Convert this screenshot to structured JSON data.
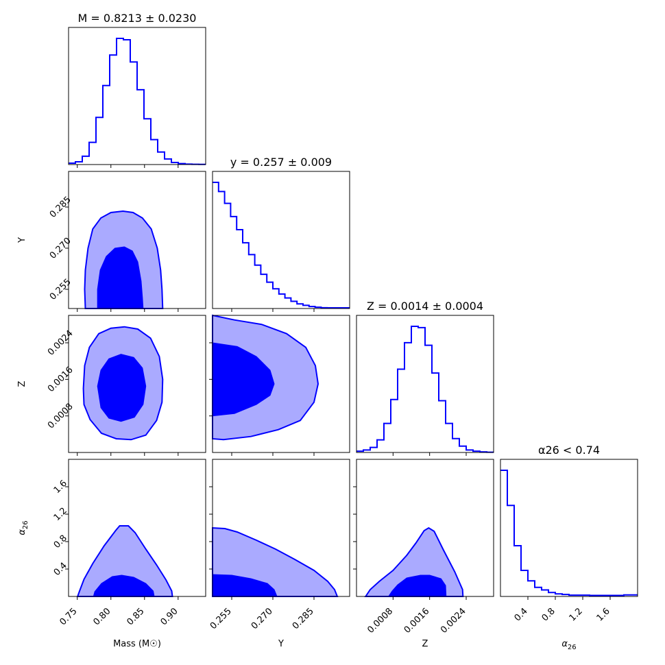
{
  "chart_data": {
    "type": "corner",
    "params": [
      {
        "key": "M",
        "axis_label": "Mass (M☉)",
        "title": "M = 0.8213 ± 0.0230",
        "range": [
          0.737,
          0.941
        ],
        "ticks": [
          0.75,
          0.8,
          0.85,
          0.9
        ],
        "tick_labels": [
          "0.75",
          "0.80",
          "0.85",
          "0.90"
        ]
      },
      {
        "key": "Y",
        "axis_label": "Y",
        "title": "y = 0.257 ± 0.009",
        "range": [
          0.248,
          0.298
        ],
        "ticks": [
          0.255,
          0.27,
          0.285
        ],
        "tick_labels": [
          "0.255",
          "0.270",
          "0.285"
        ]
      },
      {
        "key": "Z",
        "axis_label": "Z",
        "title": "Z = 0.0014 ± 0.0004",
        "range": [
          0.0,
          0.003
        ],
        "ticks": [
          0.0008,
          0.0016,
          0.0024
        ],
        "tick_labels": [
          "0.0008",
          "0.0016",
          "0.0024"
        ]
      },
      {
        "key": "alpha26",
        "axis_label": "α26",
        "title": "α26 < 0.74",
        "range": [
          0.0,
          2.0
        ],
        "ticks": [
          0.4,
          0.8,
          1.2,
          1.6
        ],
        "tick_labels": [
          "0.4",
          "0.8",
          "1.2",
          "1.6"
        ]
      }
    ],
    "histograms": [
      {
        "param": "M",
        "bins": [
          0.737,
          0.7472,
          0.7574,
          0.7676,
          0.7778,
          0.788,
          0.7982,
          0.8084,
          0.8186,
          0.8288,
          0.839,
          0.8492,
          0.8594,
          0.8696,
          0.8798,
          0.89,
          0.9002,
          0.9104,
          0.9206,
          0.9308,
          0.941
        ],
        "counts": [
          0.01,
          0.02,
          0.06,
          0.16,
          0.34,
          0.57,
          0.79,
          0.91,
          0.9,
          0.74,
          0.54,
          0.33,
          0.18,
          0.09,
          0.04,
          0.015,
          0.007,
          0.003,
          0.002,
          0.001
        ]
      },
      {
        "param": "Y",
        "bins": [
          0.248,
          0.2502,
          0.2524,
          0.2546,
          0.2568,
          0.259,
          0.2612,
          0.2634,
          0.2656,
          0.2678,
          0.27,
          0.2722,
          0.2744,
          0.2766,
          0.2788,
          0.281,
          0.2832,
          0.2854,
          0.2876,
          0.2898,
          0.298
        ],
        "counts": [
          0.96,
          0.89,
          0.8,
          0.7,
          0.6,
          0.5,
          0.41,
          0.33,
          0.26,
          0.2,
          0.15,
          0.11,
          0.08,
          0.055,
          0.035,
          0.024,
          0.015,
          0.01,
          0.006,
          0.005
        ]
      },
      {
        "param": "Z",
        "bins": [
          0.0,
          0.00015,
          0.0003,
          0.00045,
          0.0006,
          0.00075,
          0.0009,
          0.00105,
          0.0012,
          0.00135,
          0.0015,
          0.00165,
          0.0018,
          0.00195,
          0.0021,
          0.00225,
          0.0024,
          0.00255,
          0.0027,
          0.00285,
          0.003
        ],
        "counts": [
          0.01,
          0.02,
          0.04,
          0.1,
          0.23,
          0.42,
          0.66,
          0.87,
          1.0,
          0.99,
          0.85,
          0.63,
          0.41,
          0.23,
          0.11,
          0.05,
          0.02,
          0.01,
          0.005,
          0.002
        ]
      },
      {
        "param": "alpha26",
        "bins": [
          0.0,
          0.1,
          0.2,
          0.3,
          0.4,
          0.5,
          0.6,
          0.7,
          0.8,
          0.9,
          1.0,
          1.1,
          1.2,
          1.3,
          1.4,
          1.5,
          1.6,
          1.7,
          1.8,
          1.9,
          2.0
        ],
        "counts": [
          0.97,
          0.7,
          0.39,
          0.2,
          0.12,
          0.07,
          0.05,
          0.03,
          0.02,
          0.015,
          0.01,
          0.01,
          0.01,
          0.008,
          0.008,
          0.008,
          0.008,
          0.008,
          0.012,
          0.012
        ]
      }
    ],
    "contours": [
      {
        "x": "M",
        "y": "Y",
        "outer": [
          [
            0.762,
            0.248
          ],
          [
            0.761,
            0.255
          ],
          [
            0.762,
            0.262
          ],
          [
            0.766,
            0.27
          ],
          [
            0.773,
            0.277
          ],
          [
            0.785,
            0.281
          ],
          [
            0.8,
            0.283
          ],
          [
            0.818,
            0.2835
          ],
          [
            0.833,
            0.283
          ],
          [
            0.847,
            0.281
          ],
          [
            0.86,
            0.277
          ],
          [
            0.869,
            0.27
          ],
          [
            0.874,
            0.262
          ],
          [
            0.876,
            0.255
          ],
          [
            0.877,
            0.248
          ]
        ],
        "inner": [
          [
            0.78,
            0.248
          ],
          [
            0.78,
            0.255
          ],
          [
            0.784,
            0.262
          ],
          [
            0.793,
            0.267
          ],
          [
            0.806,
            0.27
          ],
          [
            0.82,
            0.2705
          ],
          [
            0.832,
            0.269
          ],
          [
            0.84,
            0.265
          ],
          [
            0.845,
            0.258
          ],
          [
            0.847,
            0.252
          ],
          [
            0.848,
            0.248
          ]
        ]
      },
      {
        "x": "M",
        "y": "Z",
        "outer": [
          [
            0.759,
            0.0014
          ],
          [
            0.761,
            0.0019
          ],
          [
            0.768,
            0.0023
          ],
          [
            0.782,
            0.0026
          ],
          [
            0.8,
            0.00272
          ],
          [
            0.82,
            0.00275
          ],
          [
            0.84,
            0.0027
          ],
          [
            0.859,
            0.0025
          ],
          [
            0.872,
            0.0021
          ],
          [
            0.877,
            0.0016
          ],
          [
            0.876,
            0.0011
          ],
          [
            0.868,
            0.0007
          ],
          [
            0.852,
            0.00038
          ],
          [
            0.83,
            0.00028
          ],
          [
            0.808,
            0.0003
          ],
          [
            0.786,
            0.00042
          ],
          [
            0.769,
            0.00072
          ],
          [
            0.76,
            0.00105
          ]
        ],
        "inner": [
          [
            0.78,
            0.00145
          ],
          [
            0.785,
            0.0018
          ],
          [
            0.797,
            0.00205
          ],
          [
            0.815,
            0.00215
          ],
          [
            0.834,
            0.00208
          ],
          [
            0.847,
            0.00185
          ],
          [
            0.852,
            0.00145
          ],
          [
            0.848,
            0.00105
          ],
          [
            0.835,
            0.00077
          ],
          [
            0.815,
            0.00068
          ],
          [
            0.797,
            0.00075
          ],
          [
            0.785,
            0.00098
          ]
        ]
      },
      {
        "x": "Y",
        "y": "Z",
        "outer": [
          [
            0.248,
            0.003
          ],
          [
            0.256,
            0.0029
          ],
          [
            0.266,
            0.0028
          ],
          [
            0.275,
            0.0026
          ],
          [
            0.282,
            0.0023
          ],
          [
            0.2855,
            0.0019
          ],
          [
            0.2865,
            0.0015
          ],
          [
            0.285,
            0.0011
          ],
          [
            0.28,
            0.0007
          ],
          [
            0.272,
            0.0005
          ],
          [
            0.262,
            0.00035
          ],
          [
            0.252,
            0.00028
          ],
          [
            0.248,
            0.0003
          ]
        ],
        "inner": [
          [
            0.248,
            0.0024
          ],
          [
            0.257,
            0.00232
          ],
          [
            0.264,
            0.0021
          ],
          [
            0.269,
            0.0018
          ],
          [
            0.2705,
            0.0015
          ],
          [
            0.269,
            0.00125
          ],
          [
            0.264,
            0.00105
          ],
          [
            0.256,
            0.00085
          ],
          [
            0.248,
            0.0008
          ]
        ]
      },
      {
        "x": "M",
        "y": "alpha26",
        "outer": [
          [
            0.7505,
            0.0
          ],
          [
            0.753,
            0.07
          ],
          [
            0.76,
            0.25
          ],
          [
            0.773,
            0.48
          ],
          [
            0.79,
            0.74
          ],
          [
            0.807,
            0.96
          ],
          [
            0.813,
            1.03
          ],
          [
            0.826,
            1.03
          ],
          [
            0.836,
            0.93
          ],
          [
            0.852,
            0.69
          ],
          [
            0.868,
            0.46
          ],
          [
            0.882,
            0.24
          ],
          [
            0.8905,
            0.08
          ],
          [
            0.8915,
            0.0
          ]
        ],
        "inner": [
          [
            0.774,
            0.0
          ],
          [
            0.776,
            0.07
          ],
          [
            0.786,
            0.19
          ],
          [
            0.802,
            0.29
          ],
          [
            0.816,
            0.31
          ],
          [
            0.834,
            0.28
          ],
          [
            0.852,
            0.19
          ],
          [
            0.863,
            0.08
          ],
          [
            0.8645,
            0.0
          ]
        ]
      },
      {
        "x": "Y",
        "y": "alpha26",
        "outer": [
          [
            0.248,
            1.0
          ],
          [
            0.2525,
            0.99
          ],
          [
            0.257,
            0.94
          ],
          [
            0.264,
            0.82
          ],
          [
            0.271,
            0.69
          ],
          [
            0.278,
            0.54
          ],
          [
            0.285,
            0.38
          ],
          [
            0.29,
            0.22
          ],
          [
            0.2925,
            0.1
          ],
          [
            0.2935,
            0.0
          ],
          [
            0.248,
            0.0
          ]
        ],
        "inner": [
          [
            0.248,
            0.32
          ],
          [
            0.255,
            0.31
          ],
          [
            0.262,
            0.26
          ],
          [
            0.268,
            0.19
          ],
          [
            0.2705,
            0.1
          ],
          [
            0.2715,
            0.0
          ],
          [
            0.248,
            0.0
          ]
        ]
      },
      {
        "x": "Z",
        "y": "alpha26",
        "outer": [
          [
            0.0002,
            0.0
          ],
          [
            0.0003,
            0.1
          ],
          [
            0.0005,
            0.22
          ],
          [
            0.0008,
            0.38
          ],
          [
            0.0011,
            0.6
          ],
          [
            0.0013,
            0.78
          ],
          [
            0.00148,
            0.96
          ],
          [
            0.00158,
            1.0
          ],
          [
            0.0017,
            0.95
          ],
          [
            0.0019,
            0.68
          ],
          [
            0.00215,
            0.36
          ],
          [
            0.00232,
            0.1
          ],
          [
            0.00233,
            0.0
          ]
        ],
        "inner": [
          [
            0.0007,
            0.0
          ],
          [
            0.00078,
            0.08
          ],
          [
            0.0009,
            0.17
          ],
          [
            0.0011,
            0.27
          ],
          [
            0.0014,
            0.31
          ],
          [
            0.0016,
            0.31
          ],
          [
            0.00185,
            0.26
          ],
          [
            0.00195,
            0.16
          ],
          [
            0.00196,
            0.0
          ]
        ]
      }
    ]
  }
}
